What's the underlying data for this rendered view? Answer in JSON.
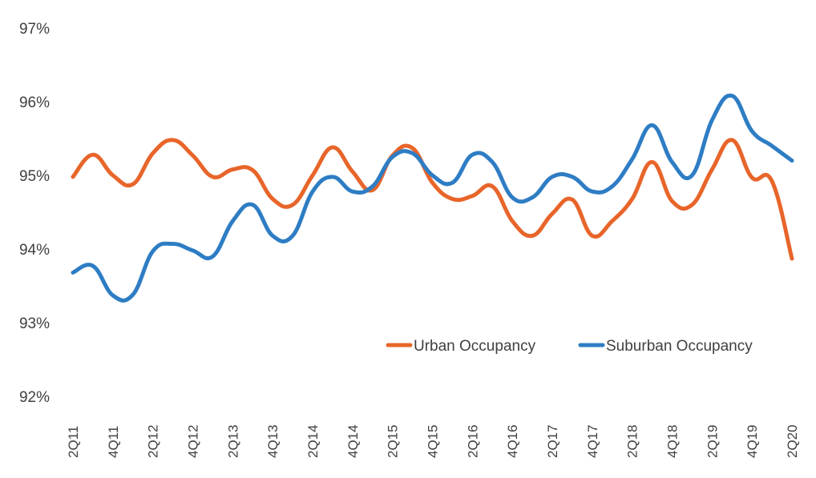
{
  "chart_data": {
    "type": "line",
    "title": "",
    "xlabel": "",
    "ylabel": "",
    "ylim": [
      92,
      97
    ],
    "y_ticks": [
      "92%",
      "93%",
      "94%",
      "95%",
      "96%",
      "97%"
    ],
    "grid": false,
    "legend_placement": "bottom-right",
    "x": [
      "2Q11",
      "3Q11",
      "4Q11",
      "1Q12",
      "2Q12",
      "3Q12",
      "4Q12",
      "1Q13",
      "2Q13",
      "3Q13",
      "4Q13",
      "1Q14",
      "2Q14",
      "3Q14",
      "4Q14",
      "1Q15",
      "2Q15",
      "3Q15",
      "4Q15",
      "1Q16",
      "2Q16",
      "3Q16",
      "4Q16",
      "1Q17",
      "2Q17",
      "3Q17",
      "4Q17",
      "1Q18",
      "2Q18",
      "3Q18",
      "4Q18",
      "1Q19",
      "2Q19",
      "3Q19",
      "4Q19",
      "1Q20",
      "2Q20"
    ],
    "x_tick_labels": [
      "2Q11",
      "4Q11",
      "2Q12",
      "4Q12",
      "2Q13",
      "4Q13",
      "2Q14",
      "4Q14",
      "2Q15",
      "4Q15",
      "2Q16",
      "4Q16",
      "2Q17",
      "4Q17",
      "2Q18",
      "4Q18",
      "2Q19",
      "4Q19",
      "2Q20"
    ],
    "series": [
      {
        "name": "Urban Occupancy",
        "color": "#E8652A",
        "values": [
          94.98,
          95.28,
          95.0,
          94.88,
          95.3,
          95.48,
          95.27,
          94.98,
          95.08,
          95.07,
          94.68,
          94.6,
          95.0,
          95.38,
          95.05,
          94.8,
          95.27,
          95.37,
          94.9,
          94.68,
          94.72,
          94.85,
          94.38,
          94.18,
          94.48,
          94.67,
          94.18,
          94.38,
          94.68,
          95.18,
          94.65,
          94.6,
          95.08,
          95.48,
          94.97,
          94.92,
          93.87
        ]
      },
      {
        "name": "Suburban Occupancy",
        "color": "#2E7DC4",
        "values": [
          93.68,
          93.77,
          93.37,
          93.38,
          93.97,
          94.07,
          93.98,
          93.9,
          94.38,
          94.6,
          94.18,
          94.18,
          94.78,
          94.98,
          94.78,
          94.85,
          95.25,
          95.3,
          95.0,
          94.9,
          95.28,
          95.18,
          94.7,
          94.7,
          94.98,
          94.98,
          94.78,
          94.85,
          95.22,
          95.68,
          95.18,
          95.0,
          95.75,
          96.08,
          95.6,
          95.4,
          95.2
        ]
      }
    ]
  }
}
